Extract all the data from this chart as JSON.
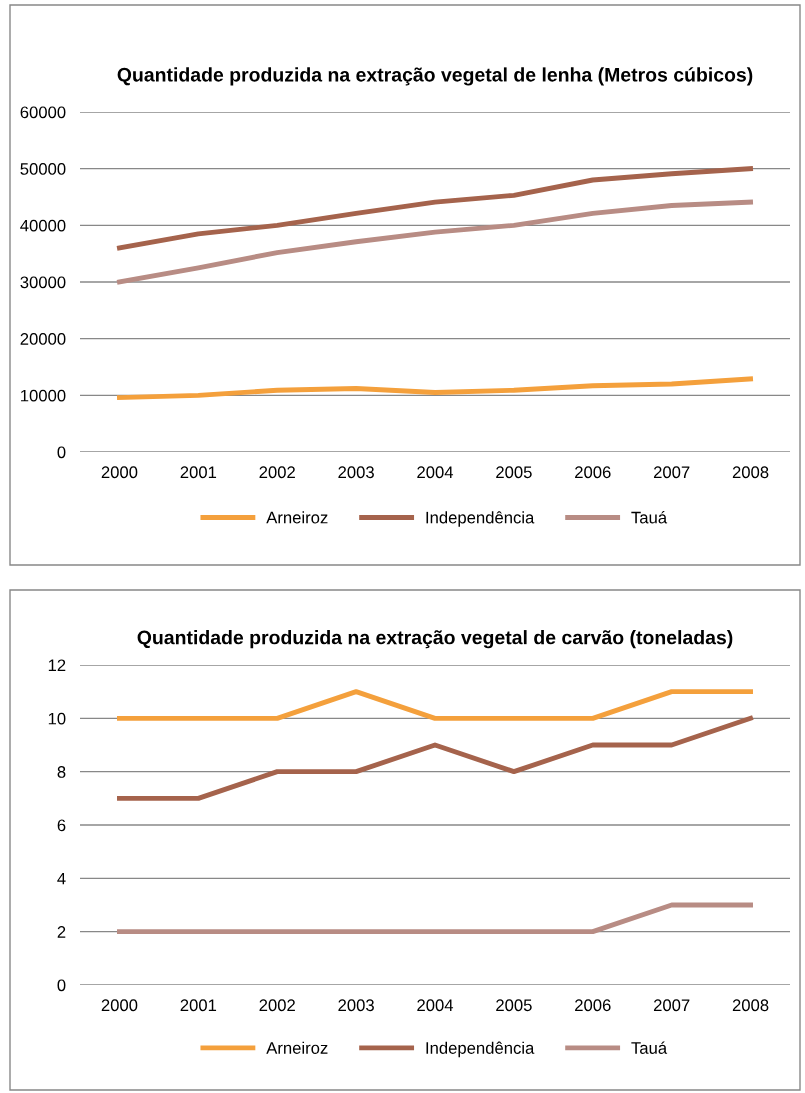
{
  "chart_data": [
    {
      "type": "line",
      "title": "Quantidade produzida na extração vegetal de lenha (Metros cúbicos)",
      "categories": [
        "2000",
        "2001",
        "2002",
        "2003",
        "2004",
        "2005",
        "2006",
        "2007",
        "2008"
      ],
      "ylim": [
        0,
        60000
      ],
      "yticks": [
        0,
        10000,
        20000,
        30000,
        40000,
        50000,
        60000
      ],
      "grid": "y",
      "legend": "bottom",
      "marker": "none",
      "line_style": "solid",
      "series": [
        {
          "name": "Arneiroz",
          "color": "#f4a03c",
          "values": [
            9600,
            10000,
            10900,
            11200,
            10500,
            10900,
            11700,
            12000,
            12900
          ]
        },
        {
          "name": "Independência",
          "color": "#a5634c",
          "values": [
            36000,
            38500,
            40000,
            42100,
            44100,
            45300,
            48000,
            49100,
            50000
          ]
        },
        {
          "name": "Tauá",
          "color": "#b88c84",
          "values": [
            30000,
            32500,
            35200,
            37100,
            38800,
            40000,
            42100,
            43500,
            44100
          ]
        }
      ]
    },
    {
      "type": "line",
      "title": "Quantidade produzida na extração vegetal de carvão (toneladas)",
      "categories": [
        "2000",
        "2001",
        "2002",
        "2003",
        "2004",
        "2005",
        "2006",
        "2007",
        "2008"
      ],
      "ylim": [
        0,
        12
      ],
      "yticks": [
        0,
        2,
        4,
        6,
        8,
        10,
        12
      ],
      "grid": "y",
      "legend": "bottom",
      "marker": "none",
      "line_style": "solid",
      "series": [
        {
          "name": "Arneiroz",
          "color": "#f4a03c",
          "values": [
            10,
            10,
            10,
            11,
            10,
            10,
            10,
            11,
            11
          ]
        },
        {
          "name": "Independência",
          "color": "#a5634c",
          "values": [
            7,
            7,
            8,
            8,
            9,
            8,
            9,
            9,
            10
          ]
        },
        {
          "name": "Tauá",
          "color": "#b88c84",
          "values": [
            2,
            2,
            2,
            2,
            2,
            2,
            2,
            3,
            3
          ]
        }
      ]
    }
  ]
}
